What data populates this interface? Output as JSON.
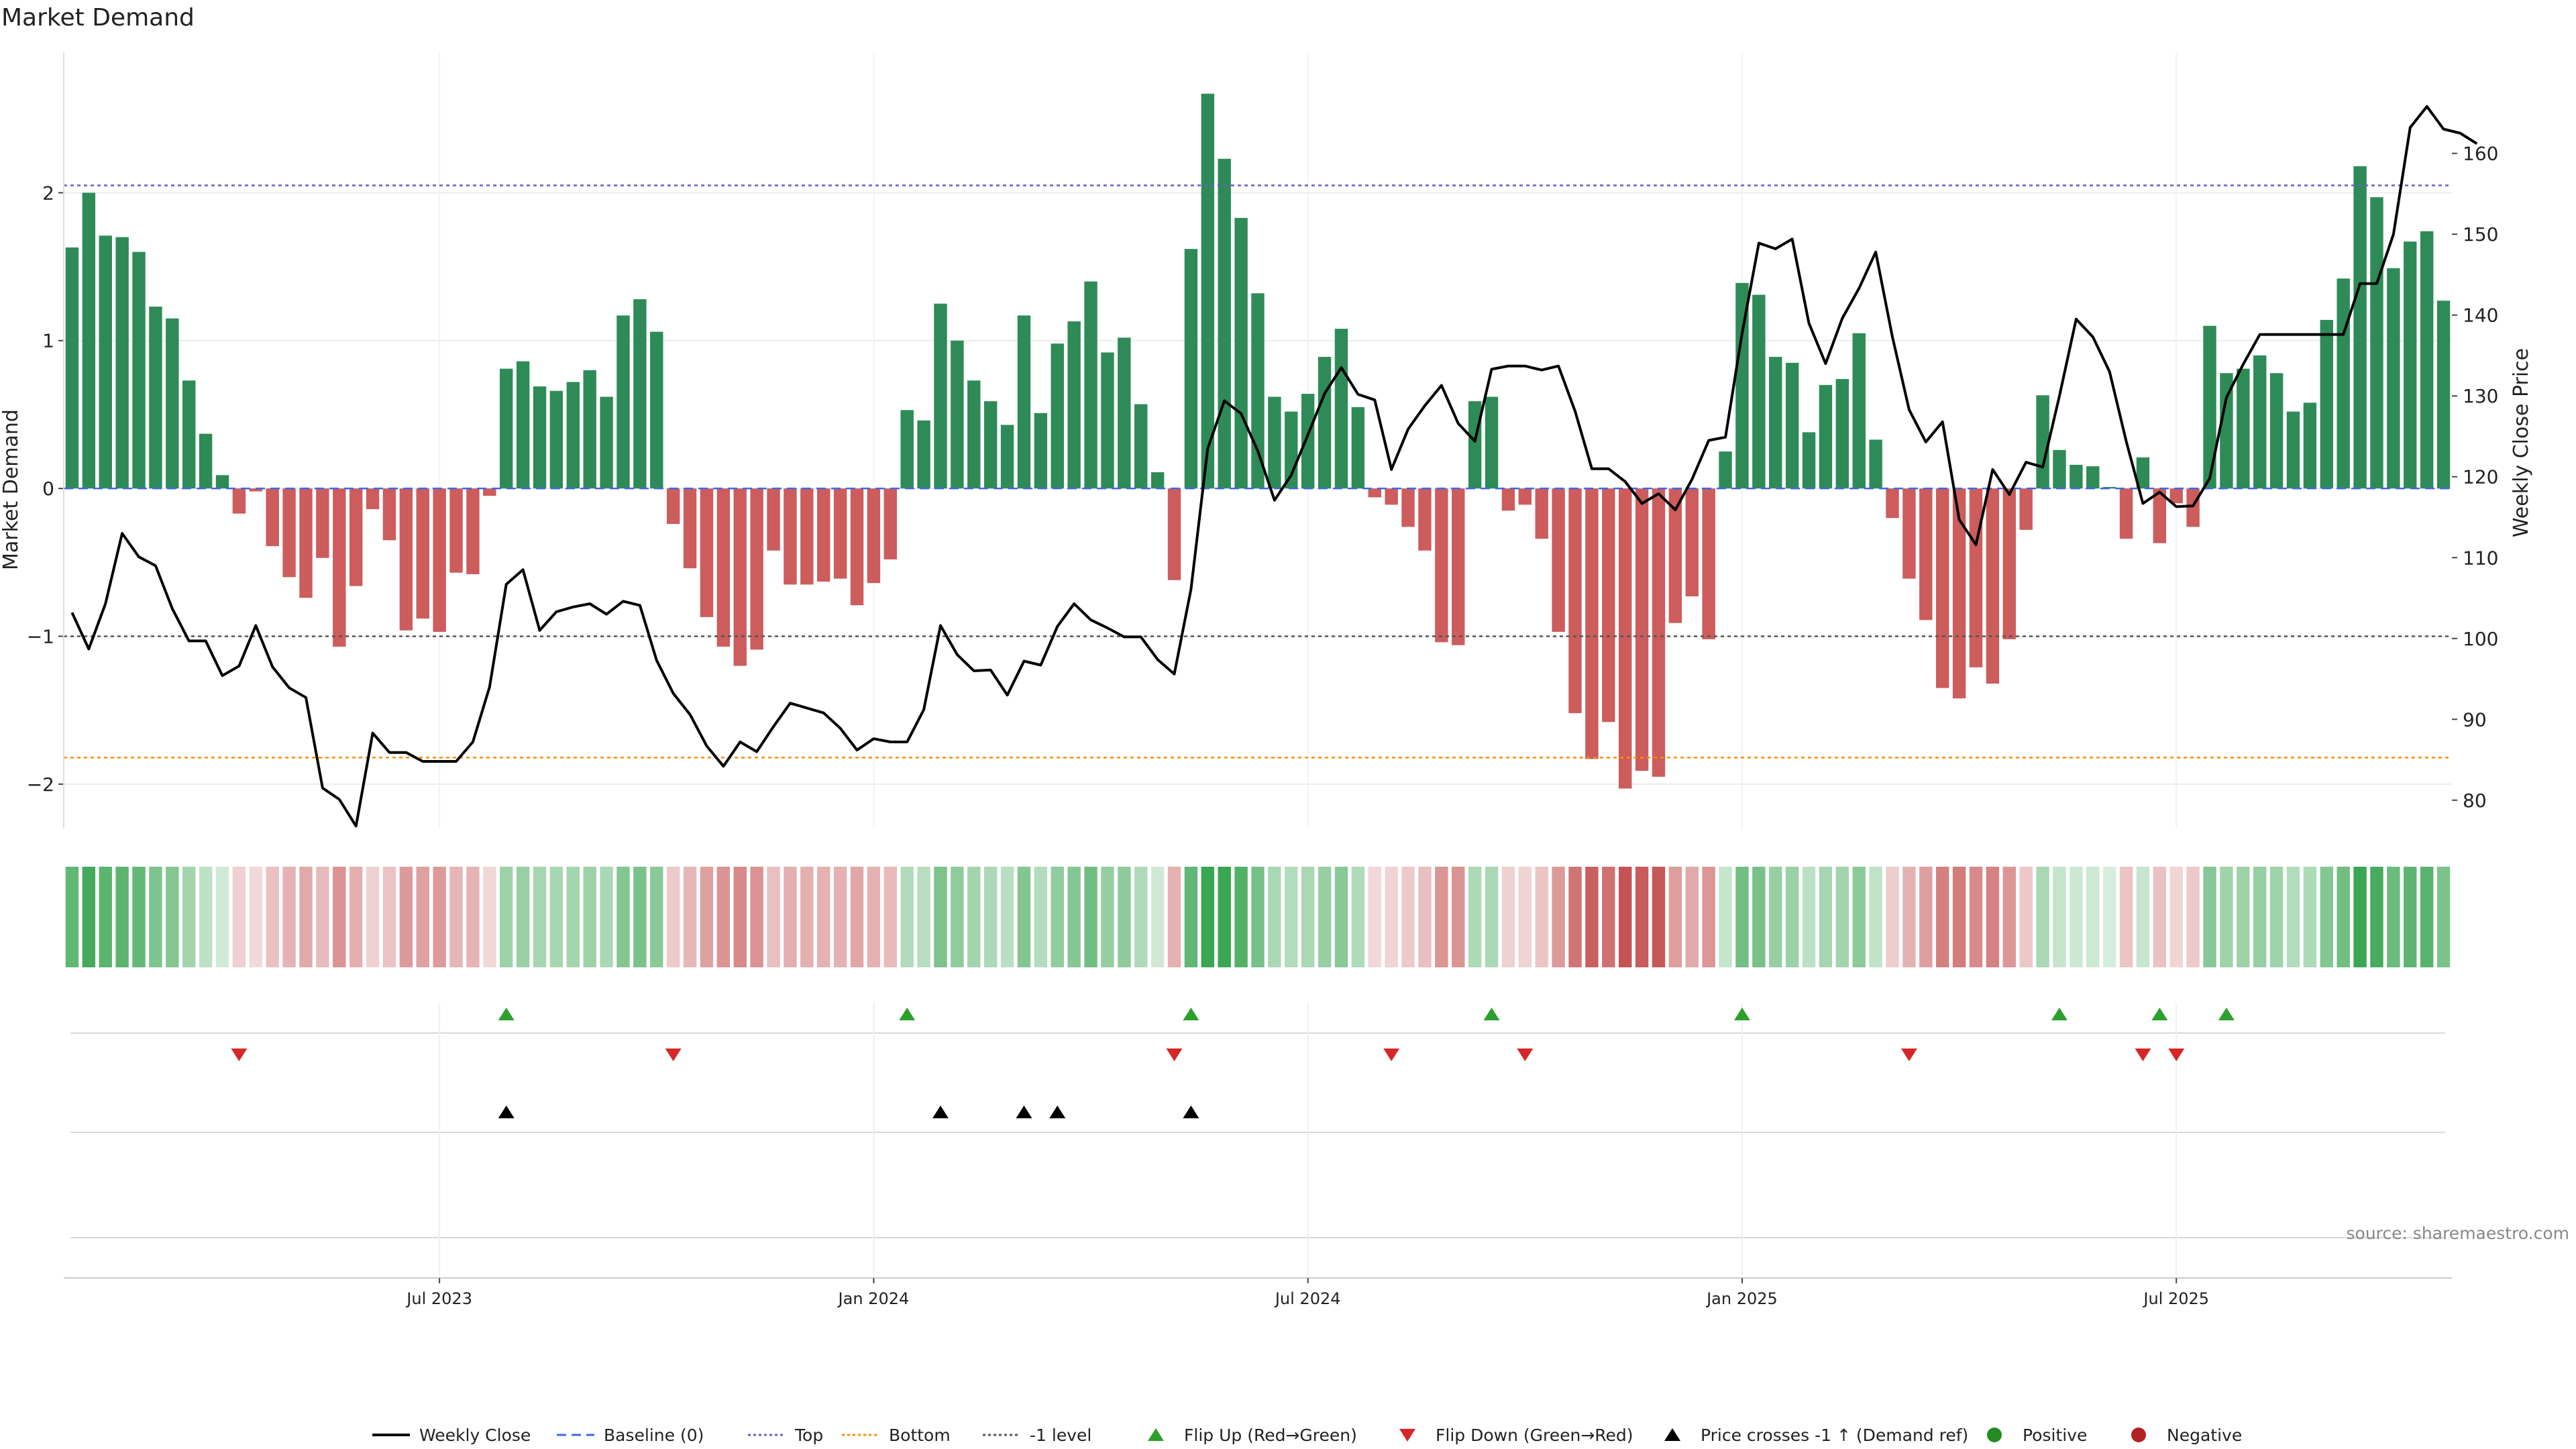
{
  "chart_data": {
    "type": "bar",
    "title": "Market Demand",
    "ylabel": "Market Demand",
    "y2label": "Weekly Close Price",
    "ylim": [
      -2.3,
      2.95
    ],
    "y2lim": [
      76.5,
      172.5
    ],
    "yticks": [
      -2,
      -1,
      0,
      1,
      2
    ],
    "y2ticks": [
      80,
      90,
      100,
      110,
      120,
      130,
      140,
      150,
      160
    ],
    "xtick_labels": [
      "Jul 2023",
      "Jan 2024",
      "Jul 2024",
      "Jan 2025",
      "Jul 2025"
    ],
    "xtick_weeks": [
      22.5,
      48.5,
      74.5,
      100.5,
      126.5
    ],
    "levels": {
      "top": 2.05,
      "bottom": -1.82,
      "minus_one": -1.0,
      "baseline": 0
    },
    "market_demand": [
      1.63,
      2.0,
      1.71,
      1.7,
      1.6,
      1.23,
      1.15,
      0.73,
      0.37,
      0.09,
      -0.17,
      -0.02,
      -0.39,
      -0.6,
      -0.74,
      -0.47,
      -1.07,
      -0.66,
      -0.14,
      -0.35,
      -0.96,
      -0.88,
      -0.97,
      -0.57,
      -0.58,
      -0.05,
      0.81,
      0.86,
      0.69,
      0.66,
      0.72,
      0.8,
      0.62,
      1.17,
      1.28,
      1.06,
      -0.24,
      -0.54,
      -0.87,
      -1.07,
      -1.2,
      -1.09,
      -0.42,
      -0.65,
      -0.65,
      -0.63,
      -0.61,
      -0.79,
      -0.64,
      -0.48,
      0.53,
      0.46,
      1.25,
      1.0,
      0.73,
      0.59,
      0.43,
      1.17,
      0.51,
      0.98,
      1.13,
      1.4,
      0.92,
      1.02,
      0.57,
      0.11,
      -0.62,
      1.62,
      2.67,
      2.23,
      1.83,
      1.32,
      0.62,
      0.52,
      0.64,
      0.89,
      1.08,
      0.55,
      -0.06,
      -0.11,
      -0.26,
      -0.42,
      -1.04,
      -1.06,
      0.59,
      0.62,
      -0.15,
      -0.11,
      -0.34,
      -0.97,
      -1.52,
      -1.83,
      -1.58,
      -2.03,
      -1.91,
      -1.95,
      -0.91,
      -0.73,
      -1.02,
      0.25,
      1.39,
      1.31,
      0.89,
      0.85,
      0.38,
      0.7,
      0.74,
      1.05,
      0.33,
      -0.2,
      -0.61,
      -0.89,
      -1.35,
      -1.42,
      -1.21,
      -1.32,
      -1.02,
      -0.28,
      0.63,
      0.26,
      0.16,
      0.15,
      0.01,
      -0.34,
      0.21,
      -0.37,
      -0.1,
      -0.26,
      1.1,
      0.78,
      0.81,
      0.9,
      0.78,
      0.52,
      0.58,
      1.14,
      1.42,
      2.18,
      1.97,
      1.49,
      1.67,
      1.74,
      1.27
    ],
    "series": [
      {
        "name": "Weekly Close",
        "values": [
          103.2,
          98.7,
          104.3,
          113.0,
          110.1,
          109.0,
          103.7,
          99.7,
          99.7,
          95.4,
          96.6,
          101.6,
          96.5,
          93.9,
          92.7,
          81.5,
          80.1,
          76.8,
          88.3,
          85.9,
          85.9,
          84.8,
          84.8,
          84.8,
          87.2,
          94.0,
          106.7,
          108.5,
          101.0,
          103.3,
          103.9,
          104.3,
          103.0,
          104.6,
          104.1,
          97.3,
          93.2,
          90.6,
          86.7,
          84.2,
          87.2,
          86.0,
          89.1,
          92.0,
          91.4,
          90.8,
          88.9,
          86.2,
          87.6,
          87.2,
          87.2,
          91.2,
          101.6,
          98.0,
          96.0,
          96.1,
          93.0,
          97.2,
          96.7,
          101.5,
          104.3,
          102.3,
          101.3,
          100.2,
          100.2,
          97.4,
          95.6,
          106.1,
          123.5,
          129.4,
          127.8,
          123.2,
          117.1,
          120.2,
          125.2,
          130.3,
          133.5,
          130.2,
          129.5,
          120.9,
          125.9,
          128.8,
          131.3,
          126.6,
          124.4,
          133.3,
          133.7,
          133.7,
          133.2,
          133.7,
          128.1,
          121.0,
          121.0,
          119.4,
          116.7,
          117.9,
          115.9,
          119.7,
          124.5,
          124.9,
          137.8,
          148.9,
          148.2,
          149.4,
          139.0,
          134.0,
          139.6,
          143.3,
          147.8,
          137.3,
          128.3,
          124.3,
          126.8,
          114.7,
          111.6,
          120.9,
          117.8,
          121.8,
          121.2,
          130.0,
          139.5,
          137.3,
          133.0,
          124.4,
          116.7,
          118.1,
          116.3,
          116.4,
          119.8,
          129.8,
          133.9,
          137.6,
          137.6,
          137.6,
          137.6,
          137.6,
          137.6,
          143.9,
          143.9,
          150.0,
          163.2,
          165.8,
          163.0,
          162.5,
          161.2
        ]
      },
      {
        "name": "Baseline (0)"
      },
      {
        "name": "Top"
      },
      {
        "name": "Bottom"
      },
      {
        "name": "-1 level"
      },
      {
        "name": "Flip Up (Red→Green)"
      },
      {
        "name": "Flip Down (Green→Red)"
      },
      {
        "name": "Price crosses -1 ↑ (Demand ref)"
      },
      {
        "name": "Positive"
      },
      {
        "name": "Negative"
      }
    ],
    "flip_up_weeks": [
      26,
      50,
      67,
      85,
      100,
      119,
      125,
      129
    ],
    "flip_down_weeks": [
      10,
      36,
      66,
      79,
      87,
      110,
      124,
      126
    ],
    "price_cross_weeks": [
      26,
      52,
      57,
      59,
      67
    ],
    "colors": {
      "positive_bar": "#2e8b57",
      "negative_bar": "#cd5c5c",
      "price_line": "#000000",
      "baseline": "#4169e1",
      "top_level": "#6a5acd",
      "bottom_level": "#ff8c00",
      "minus_one_level": "#555555",
      "flip_up": "#2ca02c",
      "flip_down": "#d62728",
      "price_cross": "#000000",
      "positive_dot": "#228b22",
      "negative_dot": "#b22222"
    },
    "legend": [
      {
        "label": "Weekly Close",
        "marker": "solid-line"
      },
      {
        "label": "Baseline (0)",
        "marker": "dashed-line"
      },
      {
        "label": "Top",
        "marker": "dotted-line"
      },
      {
        "label": "Bottom",
        "marker": "dotted-line-orange"
      },
      {
        "label": "-1 level",
        "marker": "dotted-line-dark"
      },
      {
        "label": "Flip Up (Red→Green)",
        "marker": "triangle-up-green"
      },
      {
        "label": "Flip Down (Green→Red)",
        "marker": "triangle-down-red"
      },
      {
        "label": "Price crosses -1 ↑ (Demand ref)",
        "marker": "triangle-up-black"
      },
      {
        "label": "Positive",
        "marker": "dot-green"
      },
      {
        "label": "Negative",
        "marker": "dot-red"
      }
    ],
    "legend_position": "bottom-center"
  },
  "source": "source: sharemaestro.com"
}
